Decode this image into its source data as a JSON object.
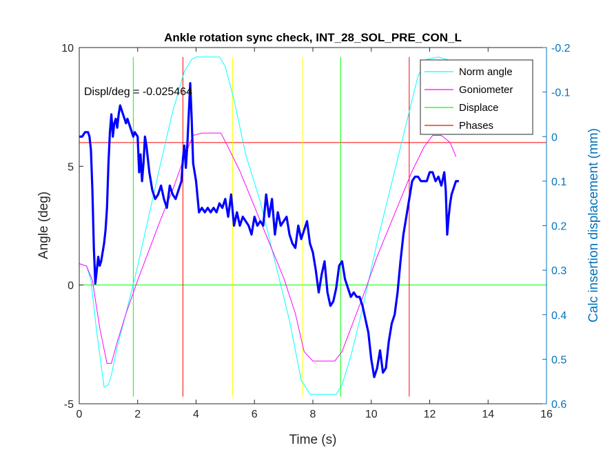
{
  "chart_data": {
    "type": "line",
    "title": "Ankle rotation sync check, INT_28_SOL_PRE_CON_L",
    "xlabel": "Time (s)",
    "ylabel": "Angle (deg)",
    "ylabel_right": "Calc insertion displacement (mm)",
    "xlim": [
      0,
      16
    ],
    "ylim": [
      -5,
      10
    ],
    "ylim_right": [
      0.6,
      -0.2
    ],
    "right_axis_reversed": true,
    "xticks": [
      0,
      2,
      4,
      6,
      8,
      10,
      12,
      14,
      16
    ],
    "yticks": [
      10,
      5,
      0,
      -5
    ],
    "yticks_right": [
      -0.2,
      -0.1,
      0,
      0.1,
      0.2,
      0.3,
      0.4,
      0.5,
      0.6
    ],
    "annotation": "Displ/deg = -0.025464",
    "legend_position": "top-right",
    "legend": [
      "Norm angle",
      "Goniometer",
      "Displace",
      "Phases"
    ],
    "colors": {
      "norm_angle": "#00FFFF",
      "goniometer": "#FF00FF",
      "displace_lines": "#00FF00",
      "phases": "#FF0000",
      "yellow_lines": "#FFFF00",
      "displacement_trace": "#0000FF",
      "right_axis": "#0072BD"
    },
    "series": [
      {
        "name": "Norm angle",
        "x": [
          0,
          0.25,
          0.4,
          0.6,
          0.85,
          1.0,
          1.1,
          1.3,
          1.6,
          2.0,
          2.4,
          2.8,
          3.2,
          3.6,
          3.85,
          4.0,
          4.3,
          4.8,
          5.0,
          5.3,
          5.7,
          6.2,
          6.7,
          7.2,
          7.6,
          7.9,
          8.3,
          8.8,
          9.0,
          9.3,
          9.7,
          10.2,
          10.7,
          11.2,
          11.6,
          11.9,
          12.3,
          12.6,
          12.8,
          13.0
        ],
        "y": [
          0.9,
          0.8,
          0.2,
          -2.0,
          -4.3,
          -4.2,
          -3.8,
          -2.6,
          -1.2,
          0.8,
          3.0,
          5.2,
          7.3,
          9.0,
          9.5,
          9.6,
          9.6,
          9.6,
          9.2,
          7.8,
          5.5,
          3.5,
          1.0,
          -1.5,
          -4.0,
          -4.6,
          -4.6,
          -4.6,
          -4.2,
          -3.0,
          -1.0,
          1.8,
          4.3,
          6.8,
          8.8,
          9.5,
          9.6,
          9.5,
          8.8,
          7.9
        ]
      },
      {
        "name": "Goniometer",
        "x": [
          0,
          0.25,
          0.45,
          0.7,
          0.95,
          1.1,
          1.3,
          1.6,
          2.0,
          2.4,
          2.8,
          3.2,
          3.6,
          3.9,
          4.2,
          4.6,
          4.85,
          5.1,
          5.5,
          6.0,
          6.5,
          7.0,
          7.4,
          7.7,
          8.0,
          8.4,
          8.75,
          9.0,
          9.4,
          9.8,
          10.2,
          10.6,
          11.0,
          11.4,
          11.8,
          12.1,
          12.4,
          12.7,
          12.9
        ],
        "y": [
          0.9,
          0.8,
          0.2,
          -1.8,
          -3.3,
          -3.3,
          -2.4,
          -1.2,
          0.2,
          1.5,
          2.8,
          4.0,
          5.4,
          6.3,
          6.4,
          6.4,
          6.4,
          5.8,
          4.8,
          3.3,
          1.8,
          0.3,
          -1.2,
          -2.8,
          -3.2,
          -3.2,
          -3.2,
          -2.8,
          -1.5,
          -0.2,
          1.2,
          2.4,
          3.6,
          4.8,
          5.8,
          6.3,
          6.3,
          6.0,
          5.4
        ]
      },
      {
        "name": "Displace",
        "x": [
          0,
          0.1,
          0.2,
          0.3,
          0.35,
          0.4,
          0.45,
          0.5,
          0.55,
          0.6,
          0.65,
          0.7,
          0.75,
          0.8,
          0.85,
          0.9,
          0.95,
          1.0,
          1.05,
          1.1,
          1.15,
          1.2,
          1.25,
          1.3,
          1.35,
          1.4,
          1.45,
          1.5,
          1.55,
          1.6,
          1.65,
          1.7,
          1.75,
          1.8,
          1.85,
          1.9,
          2.0,
          2.05,
          2.1,
          2.15,
          2.2,
          2.25,
          2.3,
          2.4,
          2.5,
          2.6,
          2.7,
          2.8,
          2.9,
          3.0,
          3.1,
          3.2,
          3.3,
          3.4,
          3.5,
          3.55,
          3.6,
          3.65,
          3.7,
          3.75,
          3.8,
          3.85,
          3.9,
          4.0,
          4.1,
          4.2,
          4.3,
          4.4,
          4.5,
          4.6,
          4.7,
          4.8,
          4.9,
          5.0,
          5.1,
          5.2,
          5.3,
          5.4,
          5.5,
          5.6,
          5.7,
          5.8,
          5.9,
          6.0,
          6.1,
          6.2,
          6.3,
          6.4,
          6.5,
          6.6,
          6.7,
          6.8,
          6.9,
          7.0,
          7.1,
          7.2,
          7.3,
          7.4,
          7.5,
          7.6,
          7.7,
          7.8,
          7.9,
          8.0,
          8.1,
          8.2,
          8.3,
          8.4,
          8.5,
          8.6,
          8.7,
          8.8,
          8.9,
          9.0,
          9.1,
          9.2,
          9.3,
          9.4,
          9.5,
          9.6,
          9.7,
          9.8,
          9.9,
          10.0,
          10.1,
          10.2,
          10.3,
          10.4,
          10.5,
          10.6,
          10.7,
          10.8,
          10.9,
          11.0,
          11.1,
          11.2,
          11.3,
          11.4,
          11.5,
          11.6,
          11.7,
          11.8,
          11.9,
          12.0,
          12.1,
          12.2,
          12.3,
          12.4,
          12.5,
          12.55,
          12.6,
          12.65,
          12.7,
          12.75,
          12.8,
          12.9,
          13.0
        ],
        "y": [
          0.0,
          0.0,
          -0.01,
          -0.01,
          0.0,
          0.03,
          0.12,
          0.25,
          0.33,
          0.3,
          0.27,
          0.29,
          0.28,
          0.26,
          0.24,
          0.21,
          0.16,
          0.06,
          -0.01,
          -0.05,
          0.0,
          -0.03,
          -0.04,
          -0.02,
          -0.05,
          -0.07,
          -0.06,
          -0.05,
          -0.04,
          -0.03,
          -0.04,
          -0.03,
          -0.02,
          -0.01,
          0.0,
          -0.01,
          0.0,
          0.08,
          0.04,
          0.1,
          0.06,
          0.0,
          0.02,
          0.08,
          0.12,
          0.14,
          0.13,
          0.11,
          0.14,
          0.16,
          0.11,
          0.13,
          0.14,
          0.12,
          0.1,
          0.05,
          0.02,
          0.07,
          0.02,
          -0.05,
          -0.12,
          -0.04,
          0.06,
          0.1,
          0.17,
          0.16,
          0.17,
          0.16,
          0.17,
          0.16,
          0.17,
          0.15,
          0.16,
          0.14,
          0.18,
          0.13,
          0.2,
          0.17,
          0.2,
          0.18,
          0.19,
          0.2,
          0.22,
          0.18,
          0.2,
          0.19,
          0.2,
          0.13,
          0.18,
          0.14,
          0.22,
          0.17,
          0.2,
          0.19,
          0.18,
          0.22,
          0.24,
          0.25,
          0.2,
          0.23,
          0.21,
          0.19,
          0.24,
          0.26,
          0.3,
          0.35,
          0.31,
          0.28,
          0.35,
          0.38,
          0.37,
          0.34,
          0.29,
          0.28,
          0.32,
          0.34,
          0.36,
          0.35,
          0.36,
          0.36,
          0.38,
          0.41,
          0.44,
          0.5,
          0.54,
          0.52,
          0.48,
          0.53,
          0.52,
          0.46,
          0.42,
          0.4,
          0.35,
          0.28,
          0.22,
          0.18,
          0.14,
          0.1,
          0.09,
          0.09,
          0.1,
          0.1,
          0.1,
          0.08,
          0.08,
          0.1,
          0.09,
          0.11,
          0.08,
          0.12,
          0.22,
          0.18,
          0.15,
          0.13,
          0.12,
          0.1,
          0.1
        ]
      },
      {
        "name": "Phases",
        "y_horizontal": 6.0,
        "x_vertical": [
          3.55,
          11.3
        ]
      }
    ],
    "green_lines": {
      "y_horizontal": 0.0,
      "x_vertical": [
        1.85,
        8.95
      ]
    },
    "yellow_lines": {
      "x_vertical": [
        5.25,
        7.65
      ]
    }
  }
}
